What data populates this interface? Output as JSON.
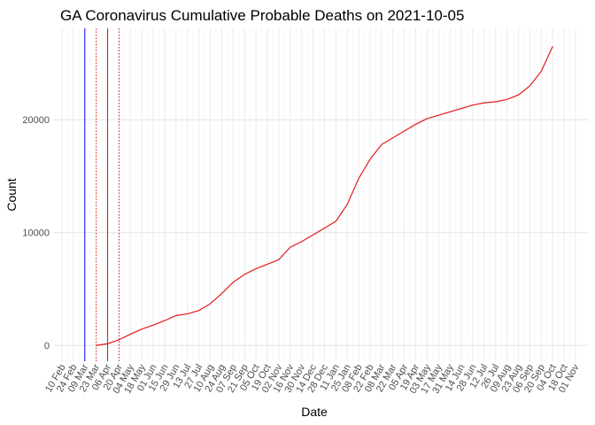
{
  "chart_data": {
    "type": "line",
    "title": "GA Coronavirus Cumulative Probable Deaths on 2021-10-05",
    "x_label": "Date",
    "y_label": "Count",
    "categories": [
      "10 Feb",
      "24 Feb",
      "09 Mar",
      "23 Mar",
      "06 Apr",
      "20 Apr",
      "04 May",
      "18 May",
      "01 Jun",
      "15 Jun",
      "29 Jun",
      "13 Jul",
      "27 Jul",
      "10 Aug",
      "24 Aug",
      "07 Sep",
      "21 Sep",
      "05 Oct",
      "19 Oct",
      "02 Nov",
      "16 Nov",
      "30 Nov",
      "14 Dec",
      "28 Dec",
      "11 Jan",
      "25 Jan",
      "08 Feb",
      "22 Feb",
      "08 Mar",
      "22 Mar",
      "05 Apr",
      "19 Apr",
      "03 May",
      "17 May",
      "31 May",
      "14 Jun",
      "28 Jun",
      "12 Jul",
      "26 Jul",
      "09 Aug",
      "23 Aug",
      "06 Sep",
      "20 Sep",
      "04 Oct",
      "18 Oct",
      "01 Nov"
    ],
    "series": [
      {
        "name": "Count",
        "color": "#e41a1c",
        "values": [
          null,
          null,
          null,
          0,
          150,
          500,
          1000,
          1450,
          1800,
          2200,
          2650,
          2800,
          3100,
          3700,
          4600,
          5600,
          6300,
          6800,
          7200,
          7600,
          8700,
          9200,
          9800,
          10400,
          11000,
          12500,
          14800,
          16500,
          17800,
          18400,
          19000,
          19600,
          20100,
          20400,
          20700,
          21000,
          21300,
          21500,
          21600,
          21800,
          22200,
          23000,
          24300,
          26500,
          null,
          null
        ]
      }
    ],
    "ylim": [
      -1400,
      28100
    ],
    "yticks": [
      0,
      10000,
      20000
    ],
    "grid": true,
    "reference_lines": [
      {
        "x": "09 Mar",
        "color": "#0000ff",
        "style": "solid"
      },
      {
        "x": "06 Apr",
        "color": "#b22222",
        "style": "solid"
      },
      {
        "x": "23 Mar",
        "color": "#e41a1c",
        "style": "dotted"
      },
      {
        "x": "20 Apr",
        "color": "#e41a1c",
        "style": "dotted"
      }
    ]
  }
}
